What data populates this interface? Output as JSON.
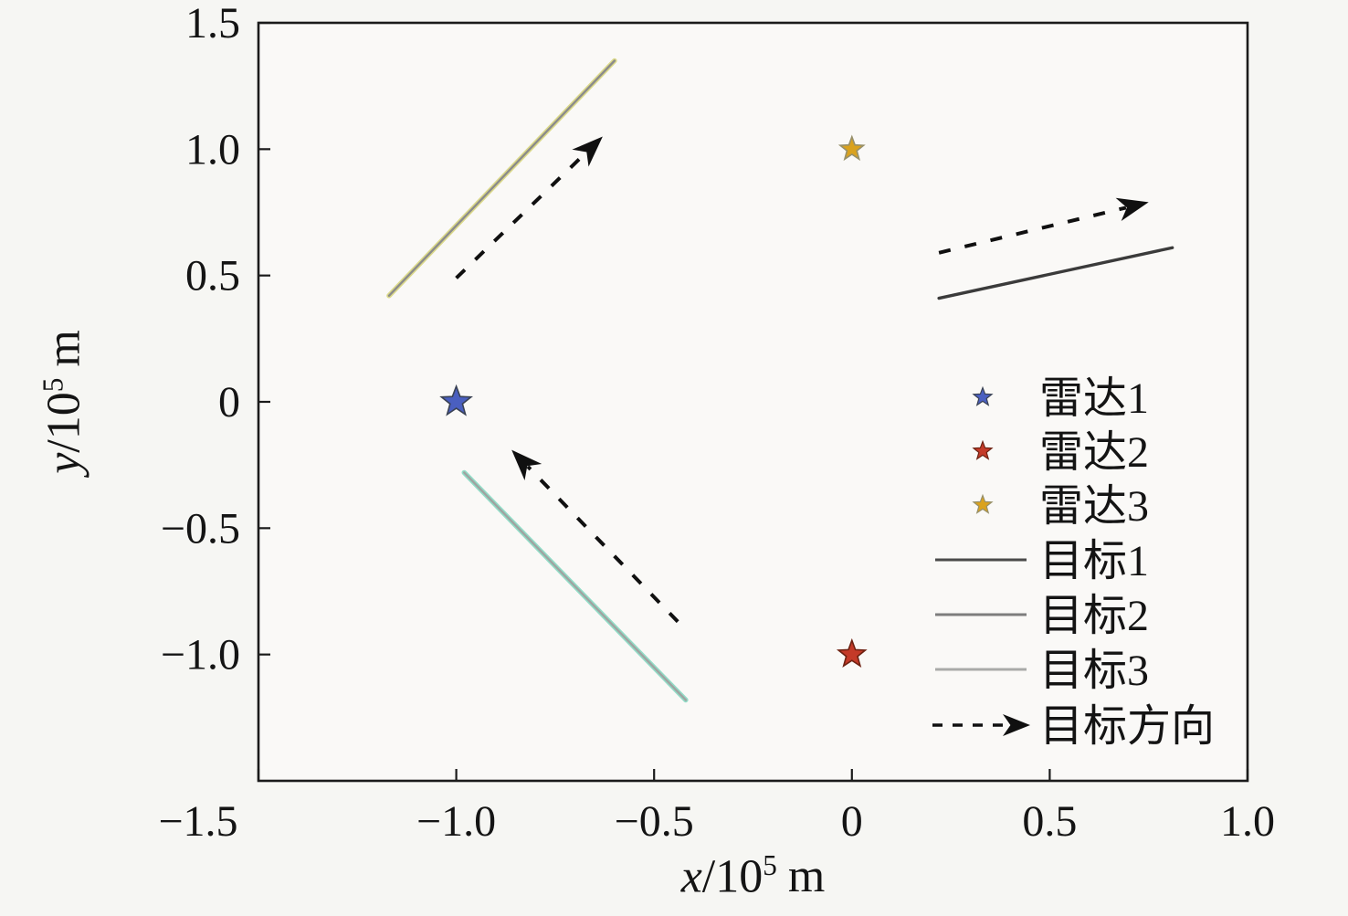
{
  "chart_data": {
    "type": "scatter",
    "title": "",
    "xlabel": {
      "variable": "x",
      "slash_base": "/10",
      "exponent": "5",
      "unit": "m",
      "text": "x/10⁵ m"
    },
    "ylabel": {
      "variable": "y",
      "slash_base": "/10",
      "exponent": "5",
      "unit": "m",
      "text": "y/10⁵ m"
    },
    "axes": {
      "xlim": [
        -1.5,
        1.0
      ],
      "ylim": [
        -1.5,
        1.5
      ],
      "x_tick_values": [
        -1.5,
        -1.0,
        -0.5,
        0,
        0.5,
        1.0
      ],
      "x_tick_labels": [
        "−1.5",
        "−1.0",
        "−0.5",
        "0",
        "0.5",
        "1.0"
      ],
      "y_tick_values": [
        1.5,
        1.0,
        0.5,
        0,
        -0.5,
        -1.0
      ],
      "y_tick_labels": [
        "1.5",
        "1.0",
        "0.5",
        "0",
        "−0.5",
        "−1.0"
      ],
      "grid": false,
      "ticks_direction": "in"
    },
    "radars": [
      {
        "label": "雷达1",
        "x": -1.0,
        "y": 0.0,
        "marker": "star",
        "color": "#4a5fc0",
        "edge_color": "#3a4254"
      },
      {
        "label": "雷达2",
        "x": 0.0,
        "y": -1.0,
        "marker": "star",
        "color": "#c43a28",
        "edge_color": "#6e2212"
      },
      {
        "label": "雷达3",
        "x": 0.0,
        "y": 1.0,
        "marker": "star",
        "color": "#daa21e",
        "edge_color": "#97906a"
      }
    ],
    "targets": [
      {
        "label": "目标1",
        "trajectory": [
          [
            0.22,
            0.41
          ],
          [
            0.81,
            0.61
          ]
        ],
        "line_color": "#3b3b3b",
        "halo_color": "",
        "legend_line_color": "#4a4a4a"
      },
      {
        "label": "目标2",
        "trajectory": [
          [
            -1.17,
            0.42
          ],
          [
            -0.6,
            1.35
          ]
        ],
        "line_color": "#8b8b8b",
        "halo_color": "#dbd98a",
        "legend_line_color": "#7d7d7d"
      },
      {
        "label": "目标3",
        "trajectory": [
          [
            -0.98,
            -0.28
          ],
          [
            -0.42,
            -1.18
          ]
        ],
        "line_color": "#9fa3a1",
        "halo_color": "#92dcc7",
        "legend_line_color": "#a9aaa8"
      }
    ],
    "direction_arrows": [
      {
        "from": [
          -1.0,
          0.49
        ],
        "to": [
          -0.63,
          1.05
        ]
      },
      {
        "from": [
          0.22,
          0.59
        ],
        "to": [
          0.75,
          0.79
        ]
      },
      {
        "from": [
          -0.44,
          -0.87
        ],
        "to": [
          -0.86,
          -0.19
        ]
      }
    ],
    "legend": {
      "position": "inside-right",
      "frame": false,
      "direction_label": "目标方向"
    },
    "colors": {
      "page_background": "#f6f6f3",
      "plot_background": "#faf9f7",
      "frame": "#1b1b1b",
      "text": "#141414",
      "arrow": "#101010"
    }
  }
}
